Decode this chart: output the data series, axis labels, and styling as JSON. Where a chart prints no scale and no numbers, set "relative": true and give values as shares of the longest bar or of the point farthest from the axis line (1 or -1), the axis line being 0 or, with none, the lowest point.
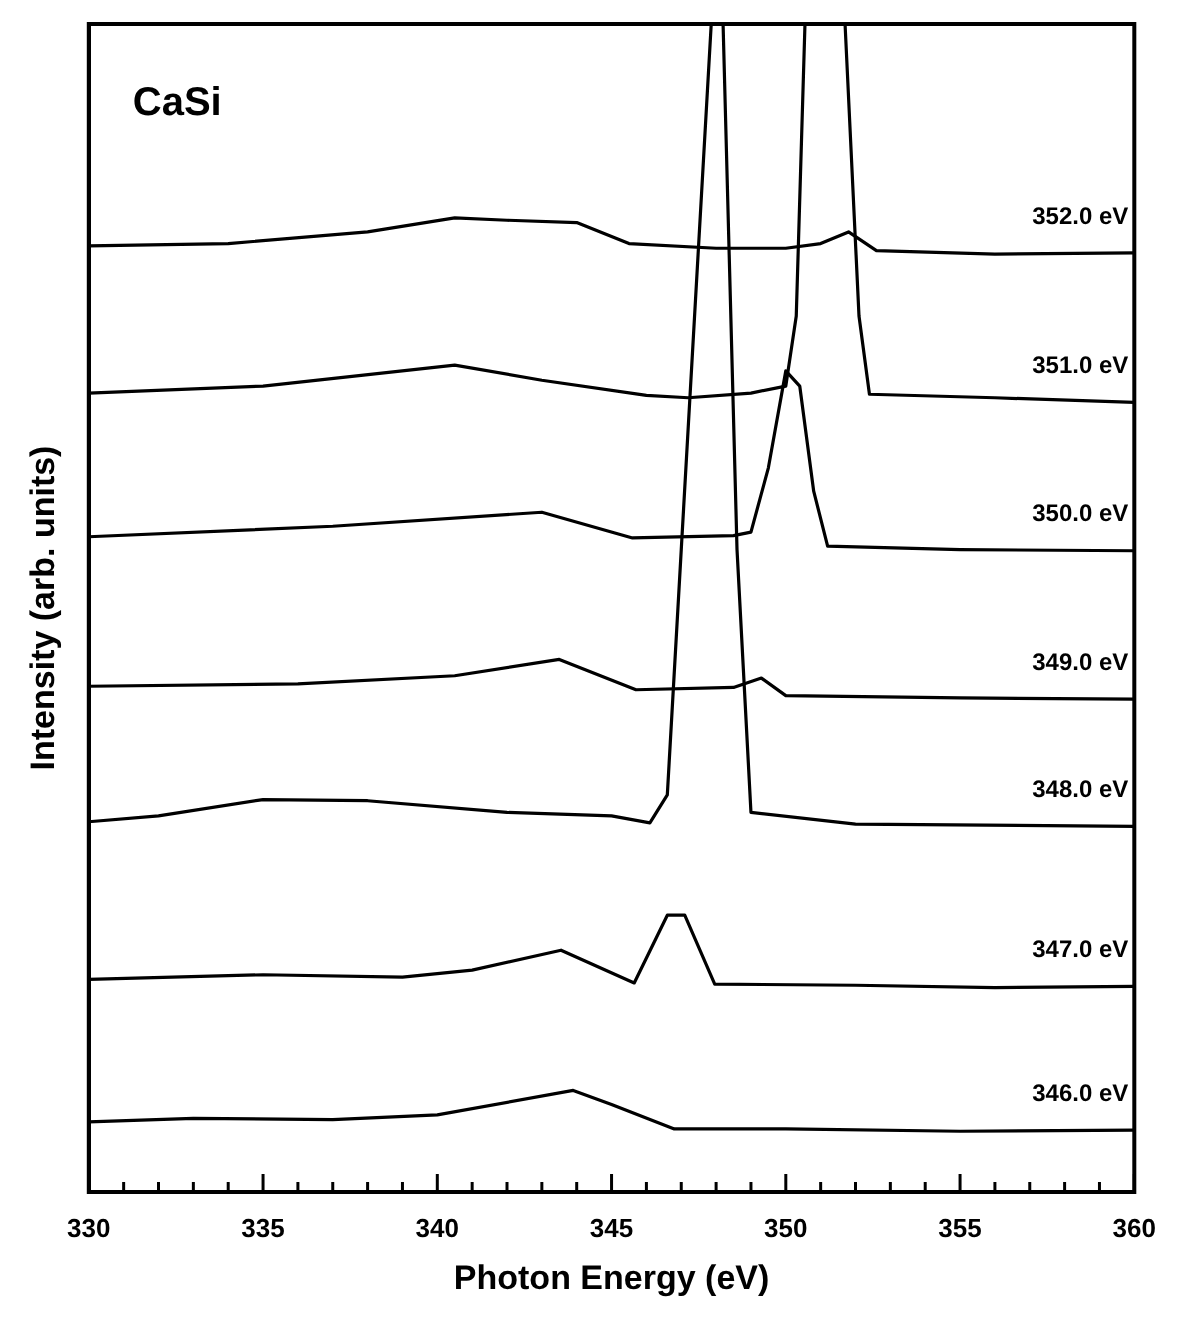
{
  "chart_data": {
    "type": "line",
    "relative": true,
    "xlabel": "Photon Energy (eV)",
    "ylabel": "Intensity (arb. units)",
    "annotations": [
      "CaSi"
    ],
    "marker": "none",
    "line_style": "solid",
    "legend": false,
    "xlim": [
      330,
      360
    ],
    "xticks": [
      330,
      {
        "value": 331,
        "label": null
      },
      {
        "value": 332,
        "label": null
      },
      {
        "value": 333,
        "label": null
      },
      {
        "value": 334,
        "label": null
      },
      335,
      {
        "value": 336,
        "label": null
      },
      {
        "value": 337,
        "label": null
      },
      {
        "value": 338,
        "label": null
      },
      {
        "value": 339,
        "label": null
      },
      340,
      {
        "value": 341,
        "label": null
      },
      {
        "value": 342,
        "label": null
      },
      {
        "value": 343,
        "label": null
      },
      {
        "value": 344,
        "label": null
      },
      345,
      {
        "value": 346,
        "label": null
      },
      {
        "value": 347,
        "label": null
      },
      {
        "value": 348,
        "label": null
      },
      {
        "value": 349,
        "label": null
      },
      350,
      {
        "value": 351,
        "label": null
      },
      {
        "value": 352,
        "label": null
      },
      {
        "value": 353,
        "label": null
      },
      {
        "value": 354,
        "label": null
      },
      355,
      {
        "value": 356,
        "label": null
      },
      {
        "value": 357,
        "label": null
      },
      {
        "value": 358,
        "label": null
      },
      {
        "value": 359,
        "label": null
      },
      360
    ],
    "series": [
      {
        "name": "352.0 eV",
        "color": "#000000",
        "x": [
          330,
          334,
          338,
          340.5,
          342,
          344,
          345.5,
          348,
          350,
          351,
          351.8,
          352.6,
          356,
          360
        ],
        "values": [
          0.81,
          0.812,
          0.822,
          0.834,
          0.832,
          0.83,
          0.812,
          0.808,
          0.808,
          0.812,
          0.822,
          0.806,
          0.803,
          0.804
        ]
      },
      {
        "name": "351.0 eV",
        "color": "#000000",
        "x": [
          330,
          335,
          340.5,
          343,
          346,
          347.2,
          349,
          350,
          350.3,
          350.55,
          351.7,
          352.1,
          352.4,
          356,
          360
        ],
        "values": [
          0.684,
          0.69,
          0.708,
          0.695,
          0.682,
          0.68,
          0.684,
          0.69,
          0.75,
          1,
          1,
          0.75,
          0.683,
          0.68,
          0.676
        ]
      },
      {
        "name": "350.0 eV",
        "color": "#000000",
        "x": [
          330,
          337,
          343,
          345.6,
          348.5,
          349,
          349.5,
          350,
          350.4,
          350.8,
          351.2,
          355,
          360
        ],
        "values": [
          0.561,
          0.57,
          0.582,
          0.56,
          0.562,
          0.565,
          0.62,
          0.703,
          0.69,
          0.6,
          0.553,
          0.55,
          0.549
        ]
      },
      {
        "name": "349.0 eV",
        "color": "#000000",
        "x": [
          330,
          336,
          340.5,
          343.5,
          345.7,
          348.5,
          349.3,
          350,
          355,
          360
        ],
        "values": [
          0.433,
          0.435,
          0.442,
          0.456,
          0.43,
          0.432,
          0.44,
          0.425,
          0.423,
          0.422
        ]
      },
      {
        "name": "348.0 eV",
        "color": "#000000",
        "x": [
          330,
          332,
          335,
          338,
          342,
          345,
          346.1,
          346.6,
          347,
          347.86,
          348.2,
          348.6,
          349,
          352,
          360
        ],
        "values": [
          0.317,
          0.322,
          0.336,
          0.335,
          0.325,
          0.322,
          0.316,
          0.34,
          0.55,
          1,
          1,
          0.55,
          0.325,
          0.315,
          0.313
        ]
      },
      {
        "name": "347.0 eV",
        "color": "#000000",
        "x": [
          330,
          335,
          339,
          341,
          343.55,
          345.65,
          346.6,
          347.1,
          347.96,
          352,
          356,
          360
        ],
        "values": [
          0.182,
          0.186,
          0.184,
          0.19,
          0.207,
          0.179,
          0.237,
          0.237,
          0.178,
          0.177,
          0.175,
          0.176
        ]
      },
      {
        "name": "346.0 eV",
        "color": "#000000",
        "x": [
          330,
          333,
          337,
          340,
          343.9,
          345,
          346.8,
          350,
          355,
          360
        ],
        "values": [
          0.06,
          0.063,
          0.062,
          0.066,
          0.087,
          0.075,
          0.054,
          0.054,
          0.052,
          0.053
        ]
      }
    ]
  }
}
